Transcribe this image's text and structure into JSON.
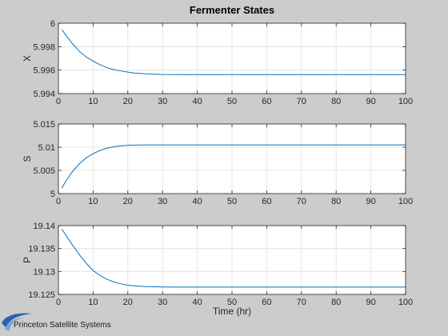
{
  "figure": {
    "title": "Fermenter States",
    "background": "#cccccc",
    "axes_background": "#ffffff",
    "line_color": "#0072bd",
    "logo_text": "Princeton Satellite Systems"
  },
  "chart_data": [
    {
      "type": "line",
      "ylabel": "X",
      "xlabel": "",
      "xlim": [
        0,
        100
      ],
      "ylim": [
        5.994,
        6
      ],
      "xticks": [
        "0",
        "10",
        "20",
        "30",
        "40",
        "50",
        "60",
        "70",
        "80",
        "90",
        "100"
      ],
      "yticks": [
        "5.994",
        "5.996",
        "5.998",
        "6"
      ],
      "ytick_values": [
        5.994,
        5.996,
        5.998,
        6
      ],
      "grid": true,
      "series": [
        {
          "x": [
            1,
            2,
            4,
            6,
            8,
            10,
            12,
            14,
            16,
            18,
            20,
            22,
            25,
            28,
            30,
            35,
            40,
            50,
            60,
            70,
            80,
            90,
            100
          ],
          "y": [
            5.99945,
            5.99905,
            5.99827,
            5.99761,
            5.99713,
            5.99677,
            5.99646,
            5.99621,
            5.99604,
            5.99593,
            5.99583,
            5.99575,
            5.99569,
            5.99565,
            5.99563,
            5.99562,
            5.99562,
            5.99562,
            5.99562,
            5.99562,
            5.99562,
            5.99562,
            5.99562
          ]
        }
      ]
    },
    {
      "type": "line",
      "ylabel": "S",
      "xlabel": "",
      "xlim": [
        0,
        100
      ],
      "ylim": [
        5,
        5.015
      ],
      "xticks": [
        "0",
        "10",
        "20",
        "30",
        "40",
        "50",
        "60",
        "70",
        "80",
        "90",
        "100"
      ],
      "yticks": [
        "5",
        "5.005",
        "5.01",
        "5.015"
      ],
      "ytick_values": [
        5,
        5.005,
        5.01,
        5.015
      ],
      "grid": true,
      "series": [
        {
          "x": [
            1,
            2,
            4,
            6,
            8,
            10,
            12,
            14,
            16,
            18,
            20,
            22,
            25,
            28,
            30,
            35,
            40,
            50,
            60,
            70,
            80,
            90,
            100
          ],
          "y": [
            5.0012,
            5.0025,
            5.0047,
            5.0064,
            5.0077,
            5.0086,
            5.0093,
            5.0098,
            5.0101,
            5.0103,
            5.0104,
            5.01045,
            5.0105,
            5.0105,
            5.0105,
            5.0105,
            5.0105,
            5.0105,
            5.0105,
            5.0105,
            5.0105,
            5.0105,
            5.0105
          ]
        }
      ]
    },
    {
      "type": "line",
      "ylabel": "P",
      "xlabel": "Time (hr)",
      "xlim": [
        0,
        100
      ],
      "ylim": [
        19.125,
        19.14
      ],
      "xticks": [
        "0",
        "10",
        "20",
        "30",
        "40",
        "50",
        "60",
        "70",
        "80",
        "90",
        "100"
      ],
      "yticks": [
        "19.125",
        "19.13",
        "19.135",
        "19.14"
      ],
      "ytick_values": [
        19.125,
        19.13,
        19.135,
        19.14
      ],
      "grid": true,
      "series": [
        {
          "x": [
            1,
            2,
            4,
            6,
            8,
            10,
            12,
            14,
            16,
            18,
            20,
            22,
            25,
            28,
            30,
            35,
            40,
            50,
            60,
            70,
            80,
            90,
            100
          ],
          "y": [
            19.1392,
            19.1381,
            19.1358,
            19.1337,
            19.1318,
            19.1302,
            19.1291,
            19.1283,
            19.1277,
            19.1273,
            19.127,
            19.12685,
            19.1267,
            19.12665,
            19.12662,
            19.1266,
            19.1266,
            19.1266,
            19.1266,
            19.1266,
            19.1266,
            19.1266,
            19.1266
          ]
        }
      ]
    }
  ]
}
